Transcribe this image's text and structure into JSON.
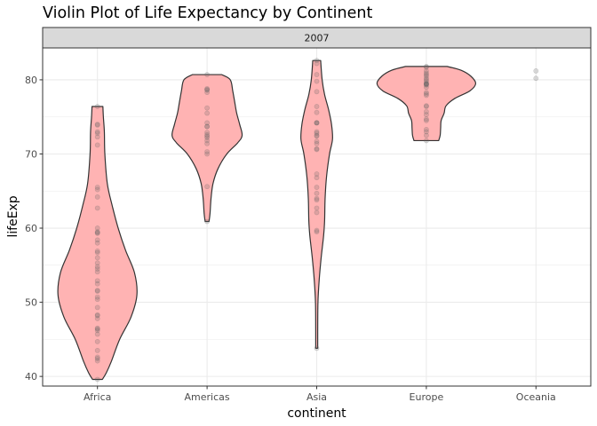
{
  "chart_data": {
    "type": "violin",
    "title": "Violin Plot of Life Expectancy by Continent",
    "facet_label": "2007",
    "xlabel": "continent",
    "ylabel": "lifeExp",
    "categories": [
      "Africa",
      "Americas",
      "Asia",
      "Europe",
      "Oceania"
    ],
    "ylim": [
      38.7,
      84.3
    ],
    "yticks": [
      40,
      50,
      60,
      70,
      80
    ],
    "grid": true,
    "legend": "none",
    "colors": {
      "violin_fill": "#ffb3b3",
      "violin_stroke": "#333333",
      "point": "#666666",
      "strip_bg": "#d9d9d9"
    },
    "violins": [
      {
        "category": "Africa",
        "profile": [
          [
            39.6,
            0.1
          ],
          [
            40.5,
            0.18
          ],
          [
            42,
            0.28
          ],
          [
            45,
            0.45
          ],
          [
            48,
            0.68
          ],
          [
            51,
            0.8
          ],
          [
            54,
            0.75
          ],
          [
            57,
            0.57
          ],
          [
            60,
            0.42
          ],
          [
            63,
            0.3
          ],
          [
            66,
            0.2
          ],
          [
            70,
            0.15
          ],
          [
            73,
            0.14
          ],
          [
            75,
            0.12
          ],
          [
            76.4,
            0.11
          ]
        ]
      },
      {
        "category": "Americas",
        "profile": [
          [
            60.9,
            0.04
          ],
          [
            62,
            0.06
          ],
          [
            64,
            0.08
          ],
          [
            66,
            0.12
          ],
          [
            68,
            0.22
          ],
          [
            70,
            0.4
          ],
          [
            71.5,
            0.62
          ],
          [
            72.5,
            0.71
          ],
          [
            74,
            0.66
          ],
          [
            75.5,
            0.6
          ],
          [
            77,
            0.56
          ],
          [
            78.5,
            0.52
          ],
          [
            80,
            0.47
          ],
          [
            80.7,
            0.3
          ]
        ]
      },
      {
        "category": "Asia",
        "profile": [
          [
            43.8,
            0.02
          ],
          [
            46,
            0.02
          ],
          [
            50,
            0.025
          ],
          [
            53,
            0.05
          ],
          [
            56,
            0.09
          ],
          [
            59,
            0.14
          ],
          [
            61,
            0.16
          ],
          [
            64,
            0.17
          ],
          [
            67,
            0.2
          ],
          [
            70,
            0.26
          ],
          [
            72,
            0.32
          ],
          [
            74,
            0.3
          ],
          [
            76,
            0.24
          ],
          [
            78,
            0.16
          ],
          [
            80,
            0.11
          ],
          [
            82.6,
            0.08
          ]
        ]
      },
      {
        "category": "Europe",
        "profile": [
          [
            71.8,
            0.25
          ],
          [
            72.5,
            0.28
          ],
          [
            73.5,
            0.29
          ],
          [
            74.5,
            0.3
          ],
          [
            75.5,
            0.36
          ],
          [
            76.5,
            0.4
          ],
          [
            77.5,
            0.58
          ],
          [
            78.5,
            0.88
          ],
          [
            79.5,
            1.0
          ],
          [
            80.5,
            0.9
          ],
          [
            81.3,
            0.7
          ],
          [
            81.8,
            0.42
          ]
        ]
      }
    ],
    "points": [
      {
        "category": "Africa",
        "values": [
          39.6,
          42.1,
          42.4,
          42.6,
          43.5,
          44.7,
          45.7,
          46.2,
          46.4,
          46.5,
          47.8,
          48.2,
          48.3,
          49.3,
          50.4,
          50.7,
          51.5,
          51.6,
          52.5,
          52.9,
          54.1,
          54.5,
          54.8,
          55.3,
          56.0,
          56.7,
          56.9,
          58.0,
          58.4,
          59.3,
          59.4,
          59.5,
          60.0,
          62.7,
          64.2,
          65.2,
          65.5,
          71.2,
          72.3,
          72.8,
          73.0,
          73.9,
          74.0,
          76.4
        ]
      },
      {
        "category": "Americas",
        "values": [
          60.9,
          65.6,
          70.0,
          70.3,
          71.4,
          71.8,
          72.2,
          72.4,
          72.6,
          72.9,
          73.7,
          73.7,
          74.2,
          75.5,
          76.2,
          78.3,
          78.6,
          78.7,
          78.8,
          80.7
        ]
      },
      {
        "category": "Asia",
        "values": [
          43.8,
          59.5,
          59.7,
          62.1,
          62.7,
          63.8,
          64.0,
          64.7,
          65.5,
          66.8,
          67.3,
          70.6,
          70.7,
          71.4,
          71.7,
          72.4,
          72.5,
          72.8,
          73.0,
          74.2,
          74.2,
          74.2,
          75.6,
          76.4,
          78.4,
          79.8,
          80.7,
          82.2,
          82.6
        ]
      },
      {
        "category": "Europe",
        "values": [
          71.8,
          72.5,
          73.0,
          73.3,
          74.5,
          74.7,
          75.3,
          75.7,
          76.4,
          76.5,
          77.9,
          78.1,
          78.3,
          79.0,
          79.3,
          79.4,
          79.4,
          79.5,
          79.5,
          79.8,
          80.0,
          80.2,
          80.5,
          80.7,
          80.9,
          81.2,
          81.7,
          81.8
        ]
      },
      {
        "category": "Oceania",
        "values": [
          80.2,
          81.2
        ]
      }
    ]
  }
}
